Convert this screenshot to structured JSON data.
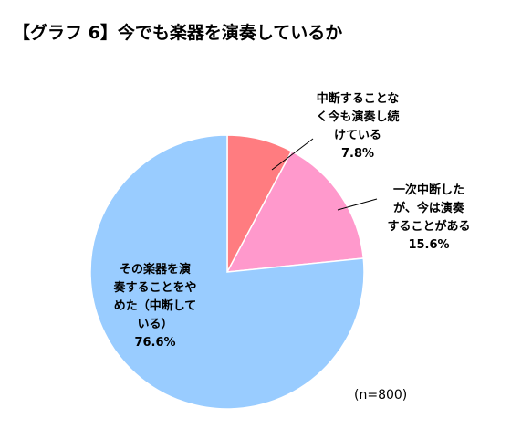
{
  "chart_data": {
    "type": "pie",
    "title": "【グラフ 6】今でも楽器を演奏しているか",
    "note": "(n=800)",
    "start_angle_deg": 0,
    "direction": "clockwise",
    "slices": [
      {
        "label_lines": [
          "中断することな",
          "く今も演奏し続",
          "けている"
        ],
        "value": 7.8,
        "value_text": "7.8%",
        "color": "#ff7c80"
      },
      {
        "label_lines": [
          "一次中断した",
          "が、今は演奏",
          "することがある"
        ],
        "value": 15.6,
        "value_text": "15.6%",
        "color": "#ff99cc"
      },
      {
        "label_lines": [
          "その楽器を演",
          "奏することをや",
          "めた（中断して",
          "いる）"
        ],
        "value": 76.6,
        "value_text": "76.6%",
        "color": "#99ccff"
      }
    ]
  }
}
